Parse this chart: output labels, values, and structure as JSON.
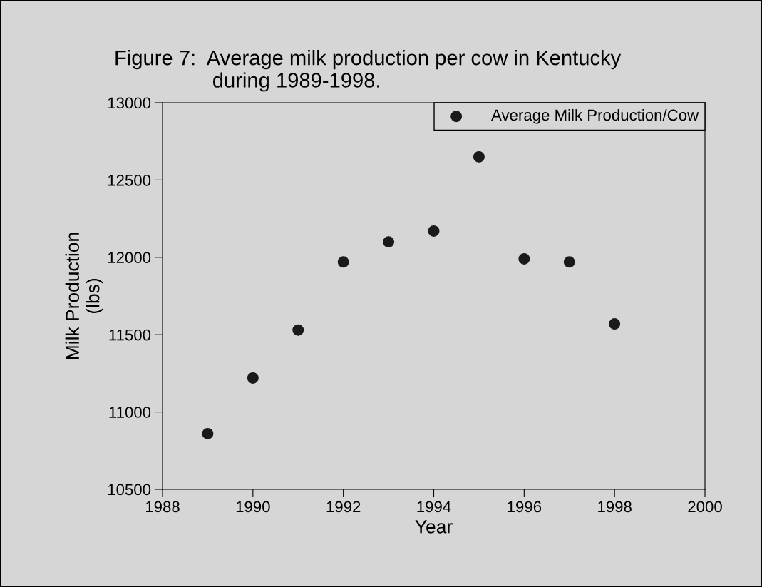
{
  "chart_data": {
    "type": "scatter",
    "title": "Figure 7:  Average milk production per cow in Kentucky\n                 during 1989-1998.",
    "xlabel": "Year",
    "ylabel": "Milk Production\n(lbs)",
    "x": [
      1989,
      1990,
      1991,
      1992,
      1993,
      1994,
      1995,
      1996,
      1997,
      1998
    ],
    "series": [
      {
        "name": "Average Milk Production/Cow",
        "color": "#1a1a1a",
        "values": [
          10860,
          11220,
          11530,
          11970,
          12100,
          12170,
          12650,
          11990,
          11970,
          11570
        ]
      }
    ],
    "xlim": [
      1988,
      2000
    ],
    "xticks": [
      1988,
      1990,
      1992,
      1994,
      1996,
      1998,
      2000
    ],
    "ylim": [
      10500,
      13000
    ],
    "yticks": [
      10500,
      11000,
      11500,
      12000,
      12500,
      13000
    ],
    "marker": "circle",
    "legend": "top right",
    "grid": false
  }
}
